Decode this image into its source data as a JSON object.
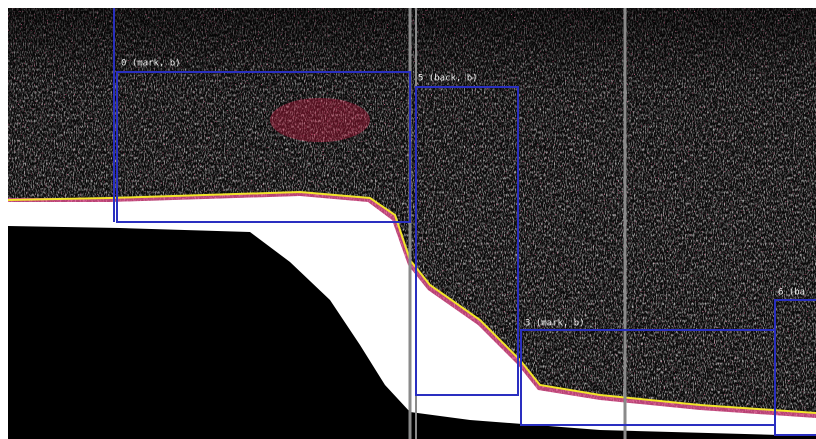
{
  "boxes": [
    {
      "label": "0 (mark, b)"
    },
    {
      "label": "5 (back, b)"
    },
    {
      "label": "3 (mark, b)"
    },
    {
      "label": "6 (ba"
    }
  ]
}
